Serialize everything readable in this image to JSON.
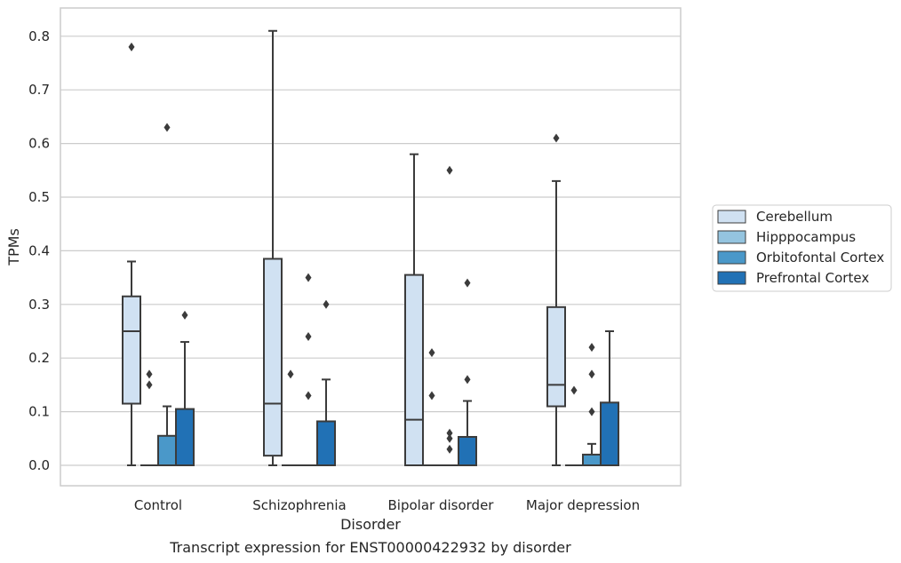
{
  "chart_data": {
    "type": "box",
    "xlabel": "Disorder",
    "ylabel": "TPMs",
    "caption": "Transcript expression for ENST00000422932 by disorder",
    "ylim": [
      -0.04,
      0.85
    ],
    "yticks": [
      "0.0",
      "0.1",
      "0.2",
      "0.3",
      "0.4",
      "0.5",
      "0.6",
      "0.7",
      "0.8"
    ],
    "grid": "horizontal",
    "legend_position": "right",
    "categories": [
      "Control",
      "Schizophrenia",
      "Bipolar disorder",
      "Major depression"
    ],
    "series": [
      {
        "name": "Cerebellum",
        "color": "#d0e1f2",
        "boxes": [
          {
            "whisker_low": 0.0,
            "q1": 0.115,
            "median": 0.25,
            "q3": 0.315,
            "whisker_high": 0.38,
            "outliers": [
              0.78
            ]
          },
          {
            "whisker_low": 0.0,
            "q1": 0.018,
            "median": 0.115,
            "q3": 0.385,
            "whisker_high": 0.81,
            "outliers": []
          },
          {
            "whisker_low": 0.0,
            "q1": 0.0,
            "median": 0.085,
            "q3": 0.355,
            "whisker_high": 0.58,
            "outliers": []
          },
          {
            "whisker_low": 0.0,
            "q1": 0.11,
            "median": 0.15,
            "q3": 0.295,
            "whisker_high": 0.53,
            "outliers": [
              0.61
            ]
          }
        ]
      },
      {
        "name": "Hipppocampus",
        "color": "#94c4df",
        "boxes": [
          {
            "whisker_low": 0.0,
            "q1": 0.0,
            "median": 0.0,
            "q3": 0.0,
            "whisker_high": 0.0,
            "outliers": [
              0.17,
              0.15
            ]
          },
          {
            "whisker_low": 0.0,
            "q1": 0.0,
            "median": 0.0,
            "q3": 0.0,
            "whisker_high": 0.0,
            "outliers": [
              0.17
            ]
          },
          {
            "whisker_low": 0.0,
            "q1": 0.0,
            "median": 0.0,
            "q3": 0.0,
            "whisker_high": 0.0,
            "outliers": [
              0.21,
              0.13
            ]
          },
          {
            "whisker_low": 0.0,
            "q1": 0.0,
            "median": 0.0,
            "q3": 0.0,
            "whisker_high": 0.0,
            "outliers": [
              0.14
            ]
          }
        ]
      },
      {
        "name": "Orbitofontal Cortex",
        "color": "#4a98c9",
        "boxes": [
          {
            "whisker_low": 0.0,
            "q1": 0.0,
            "median": 0.0,
            "q3": 0.055,
            "whisker_high": 0.11,
            "outliers": [
              0.63
            ]
          },
          {
            "whisker_low": 0.0,
            "q1": 0.0,
            "median": 0.0,
            "q3": 0.0,
            "whisker_high": 0.0,
            "outliers": [
              0.35,
              0.24,
              0.13
            ]
          },
          {
            "whisker_low": 0.0,
            "q1": 0.0,
            "median": 0.0,
            "q3": 0.0,
            "whisker_high": 0.0,
            "outliers": [
              0.55,
              0.06,
              0.05,
              0.03
            ]
          },
          {
            "whisker_low": 0.0,
            "q1": 0.0,
            "median": 0.0,
            "q3": 0.02,
            "whisker_high": 0.04,
            "outliers": [
              0.22,
              0.17,
              0.1
            ]
          }
        ]
      },
      {
        "name": "Prefrontal Cortex",
        "color": "#2171b5",
        "boxes": [
          {
            "whisker_low": 0.0,
            "q1": 0.0,
            "median": 0.0,
            "q3": 0.105,
            "whisker_high": 0.23,
            "outliers": [
              0.28
            ]
          },
          {
            "whisker_low": 0.0,
            "q1": 0.0,
            "median": 0.0,
            "q3": 0.082,
            "whisker_high": 0.16,
            "outliers": [
              0.3
            ]
          },
          {
            "whisker_low": 0.0,
            "q1": 0.0,
            "median": 0.0,
            "q3": 0.053,
            "whisker_high": 0.12,
            "outliers": [
              0.34,
              0.16
            ]
          },
          {
            "whisker_low": 0.0,
            "q1": 0.0,
            "median": 0.0,
            "q3": 0.117,
            "whisker_high": 0.25,
            "outliers": []
          }
        ]
      }
    ]
  }
}
